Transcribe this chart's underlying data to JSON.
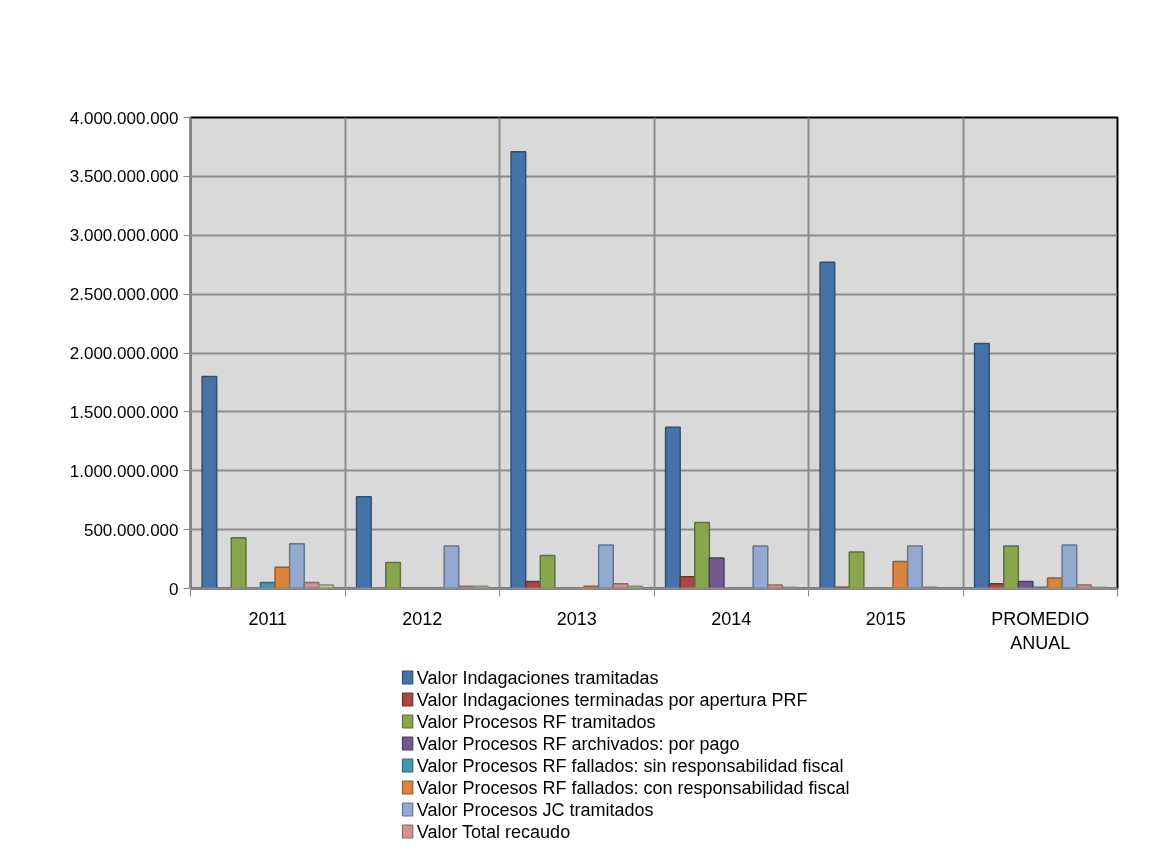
{
  "chart_data": {
    "type": "bar",
    "categories": [
      "2011",
      "2012",
      "2013",
      "2014",
      "2015",
      "PROMEDIO ANUAL"
    ],
    "series": [
      {
        "name": "Valor Indagaciones tramitadas",
        "color": "#4572a7",
        "values": [
          1800000000,
          780000000,
          3710000000,
          1370000000,
          2770000000,
          2080000000
        ]
      },
      {
        "name": "Valor Indagaciones terminadas por apertura PRF",
        "color": "#aa4643",
        "values": [
          null,
          null,
          60000000,
          100000000,
          10000000,
          40000000
        ]
      },
      {
        "name": "Valor Procesos RF tramitados",
        "color": "#89a54e",
        "values": [
          430000000,
          220000000,
          280000000,
          560000000,
          310000000,
          360000000
        ]
      },
      {
        "name": "Valor Procesos RF archivados: por pago",
        "color": "#71588f",
        "values": [
          null,
          null,
          null,
          260000000,
          null,
          60000000
        ]
      },
      {
        "name": "Valor Procesos RF fallados: sin responsabilidad fiscal",
        "color": "#4198af",
        "values": [
          50000000,
          null,
          null,
          null,
          null,
          10000000
        ]
      },
      {
        "name": "Valor Procesos RF fallados: con responsabilidad fiscal",
        "color": "#db843d",
        "values": [
          180000000,
          null,
          20000000,
          null,
          230000000,
          90000000
        ]
      },
      {
        "name": "Valor Procesos JC tramitados",
        "color": "#93a9cf",
        "values": [
          380000000,
          360000000,
          370000000,
          360000000,
          360000000,
          370000000
        ]
      },
      {
        "name": "Valor Total recaudo",
        "color": "#d19392",
        "values": [
          50000000,
          20000000,
          40000000,
          30000000,
          10000000,
          30000000
        ]
      },
      {
        "color": "#b9cd96",
        "values": [
          30000000,
          20000000,
          20000000,
          10000000,
          null,
          10000000
        ]
      }
    ],
    "ylim": [
      0,
      4000000000
    ],
    "yticks": [
      0,
      {
        "value": 500000000,
        "label": "500.000.000"
      },
      {
        "value": 1000000000,
        "label": "1.000.000.000"
      },
      {
        "value": 1500000000,
        "label": "1.500.000.000"
      },
      {
        "value": 2000000000,
        "label": "2.000.000.000"
      },
      {
        "value": 2500000000,
        "label": "2.500.000.000"
      },
      {
        "value": 3000000000,
        "label": "3.000.000.000"
      },
      {
        "value": 3500000000,
        "label": "3.500.000.000"
      },
      {
        "value": 4000000000,
        "label": "4.000.000.000"
      }
    ],
    "grid": true,
    "legend": "bottom"
  }
}
